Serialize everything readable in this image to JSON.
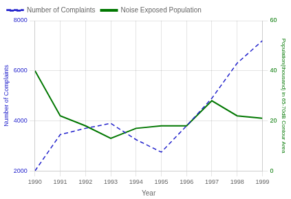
{
  "chart_data": {
    "type": "line",
    "xlabel": "Year",
    "ylabel": "Number of Complaints",
    "y2label": "Population(thousand) in 65-70dB Contour Area",
    "x": [
      1990,
      1991,
      1992,
      1993,
      1994,
      1995,
      1996,
      1997,
      1998,
      1999
    ],
    "xlim": [
      1990,
      1999
    ],
    "xticks": [
      1990,
      1991,
      1992,
      1993,
      1994,
      1995,
      1996,
      1997,
      1998,
      1999
    ],
    "ylim": [
      2000,
      8000
    ],
    "yticks": [
      2000,
      4000,
      6000,
      8000
    ],
    "y2lim": [
      0,
      60
    ],
    "y2ticks": [
      0,
      20,
      40,
      60
    ],
    "grid": true,
    "legend": "upper left",
    "series": [
      {
        "name": "Number of Complaints",
        "color": "#2222CC",
        "line_style": "dashed",
        "values": [
          2000,
          3450,
          3700,
          3900,
          3250,
          2750,
          3800,
          4900,
          6300,
          7200
        ]
      },
      {
        "name": "Noise Exposed Population",
        "color": "#007700",
        "line_style": "solid",
        "axis": "y2",
        "values": [
          40,
          22,
          18,
          13,
          17,
          18,
          18,
          28,
          22,
          21
        ]
      }
    ]
  }
}
